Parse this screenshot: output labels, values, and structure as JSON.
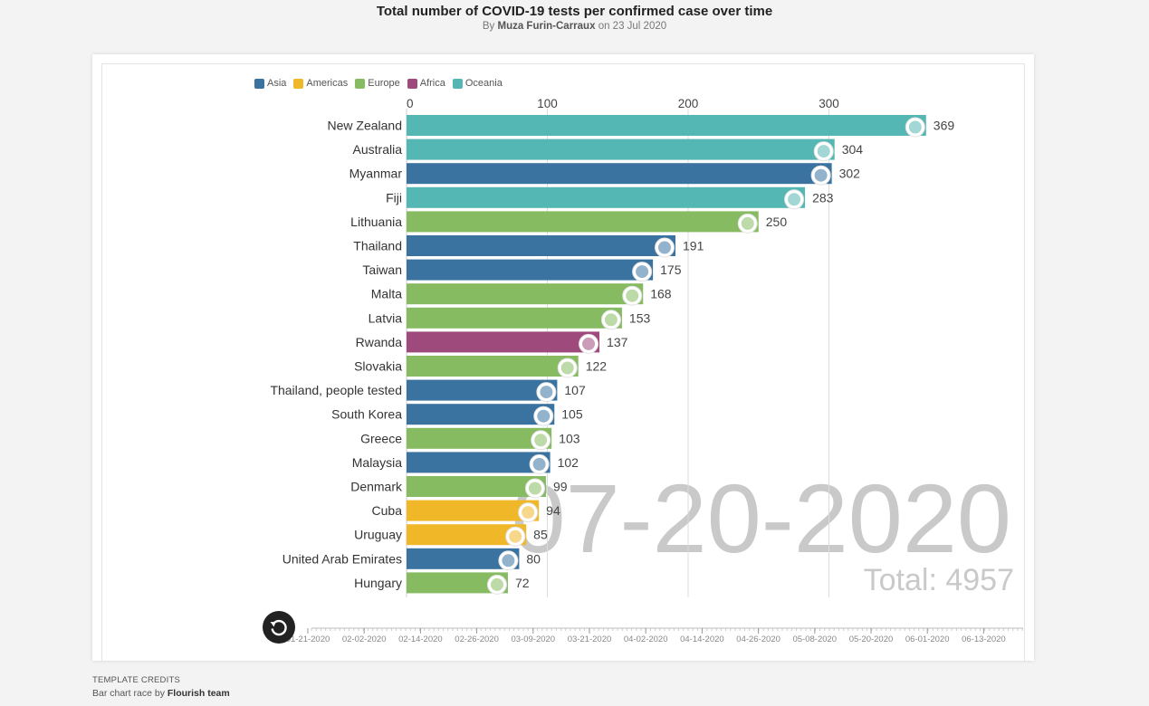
{
  "header": {
    "title": "Total number of COVID-19 tests per confirmed case over time",
    "byline_prefix": "By",
    "author": "Muza Furin-Carraux",
    "byline_suffix": "on 23 Jul 2020"
  },
  "footer": {
    "credits_heading": "TEMPLATE CREDITS",
    "credits_text": "Bar chart race by",
    "credits_team": "Flourish team"
  },
  "legend": [
    {
      "name": "Asia",
      "color": "#3a73a0"
    },
    {
      "name": "Americas",
      "color": "#f0b829"
    },
    {
      "name": "Europe",
      "color": "#86bb62"
    },
    {
      "name": "Africa",
      "color": "#9e4a7c"
    },
    {
      "name": "Oceania",
      "color": "#55b7b3"
    }
  ],
  "icons": {
    "replay": "replay-icon",
    "flag": "flag-icon"
  },
  "chart_data": {
    "type": "bar",
    "orientation": "horizontal",
    "title": "Total number of COVID-19 tests per confirmed case over time",
    "date": "07-20-2020",
    "total_label": "Total: 4957",
    "xlim": [
      0,
      369
    ],
    "x_ticks": [
      0,
      100,
      200,
      300
    ],
    "grid": true,
    "legend_position": "top-left",
    "categories": [
      "New Zealand",
      "Australia",
      "Myanmar",
      "Fiji",
      "Lithuania",
      "Thailand",
      "Taiwan",
      "Malta",
      "Latvia",
      "Rwanda",
      "Slovakia",
      "Thailand, people tested",
      "South Korea",
      "Greece",
      "Malaysia",
      "Denmark",
      "Cuba",
      "Uruguay",
      "United Arab Emirates",
      "Hungary"
    ],
    "values": [
      369,
      304,
      302,
      283,
      250,
      191,
      175,
      168,
      153,
      137,
      122,
      107,
      105,
      103,
      102,
      99,
      94,
      85,
      80,
      72
    ],
    "regions": [
      "Oceania",
      "Oceania",
      "Asia",
      "Oceania",
      "Europe",
      "Asia",
      "Asia",
      "Europe",
      "Europe",
      "Africa",
      "Europe",
      "Asia",
      "Asia",
      "Europe",
      "Asia",
      "Europe",
      "Americas",
      "Americas",
      "Asia",
      "Europe"
    ],
    "timeline": {
      "labels": [
        "01-21-2020",
        "02-02-2020",
        "02-14-2020",
        "02-26-2020",
        "03-09-2020",
        "03-21-2020",
        "04-02-2020",
        "04-14-2020",
        "04-26-2020",
        "05-08-2020",
        "05-20-2020",
        "06-01-2020",
        "06-13-2020"
      ]
    }
  }
}
